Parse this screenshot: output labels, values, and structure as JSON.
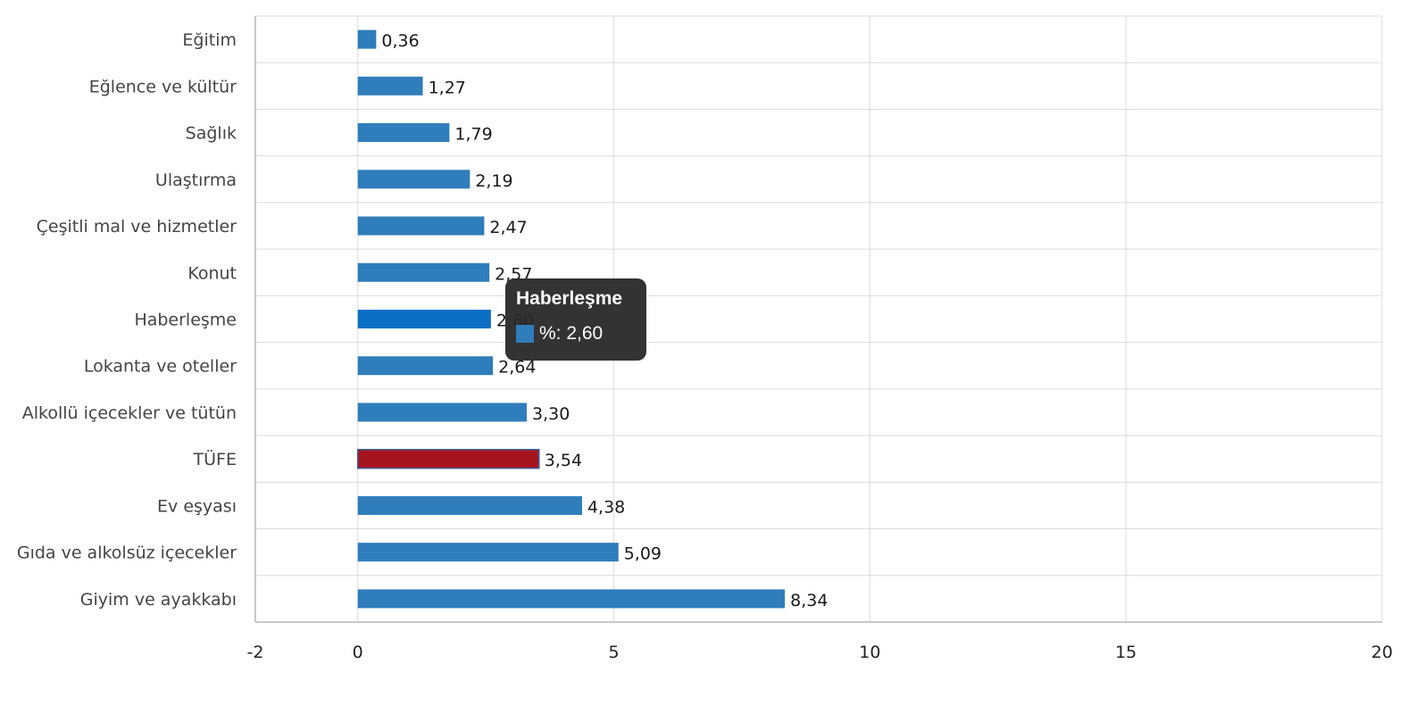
{
  "chart_data": {
    "type": "bar",
    "orientation": "horizontal",
    "categories": [
      "Eğitim",
      "Eğlence ve kültür",
      "Sağlık",
      "Ulaştırma",
      "Çeşitli mal ve hizmetler",
      "Konut",
      "Haberleşme",
      "Lokanta ve oteller",
      "Alkollü içecekler ve tütün",
      "TÜFE",
      "Ev eşyası",
      "Gıda ve alkolsüz içecekler",
      "Giyim ve ayakkabı"
    ],
    "values": [
      0.36,
      1.27,
      1.79,
      2.19,
      2.47,
      2.57,
      2.6,
      2.64,
      3.3,
      3.54,
      4.38,
      5.09,
      8.34
    ],
    "value_labels": [
      "0,36",
      "1,27",
      "1,79",
      "2,19",
      "2,47",
      "2,57",
      "2,60",
      "2,64",
      "3,30",
      "3,54",
      "4,38",
      "5,09",
      "8,34"
    ],
    "xlim": [
      -2,
      20
    ],
    "x_ticks": [
      -2,
      0,
      5,
      10,
      15,
      20
    ],
    "x_tick_labels": [
      "-2",
      "0",
      "5",
      "10",
      "15",
      "20"
    ],
    "grid": true,
    "colors": {
      "bar": "#2f7dba",
      "highlight_bar": "#a6151d",
      "hover_bar": "#0b6fc4",
      "grid": "#dcdcdc",
      "axis": "#c8c8c8"
    },
    "highlight_index": 9,
    "hover_index": 6
  },
  "tooltip": {
    "title": "Haberleşme",
    "text": "%: 2,60",
    "swatch_color": "#2f7dba"
  }
}
